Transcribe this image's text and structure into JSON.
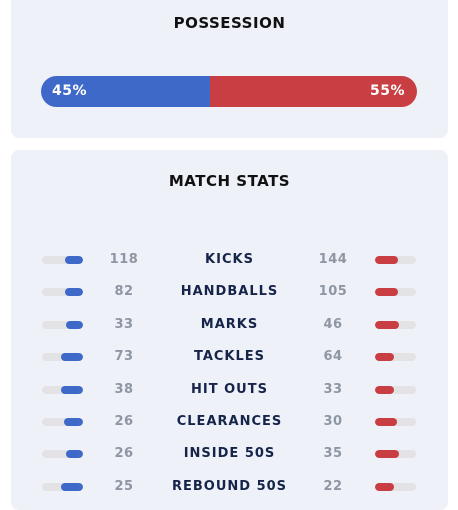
{
  "possession": {
    "title": "POSSESSION",
    "home": {
      "value": 45,
      "label": "45%",
      "color": "#3f69c9"
    },
    "away": {
      "value": 55,
      "label": "55%",
      "color": "#c93e42"
    }
  },
  "match_stats": {
    "title": "MATCH STATS",
    "rows": [
      {
        "label": "KICKS",
        "home": "118",
        "away": "144"
      },
      {
        "label": "HANDBALLS",
        "home": "82",
        "away": "105"
      },
      {
        "label": "MARKS",
        "home": "33",
        "away": "46"
      },
      {
        "label": "TACKLES",
        "home": "73",
        "away": "64"
      },
      {
        "label": "HIT OUTS",
        "home": "38",
        "away": "33"
      },
      {
        "label": "CLEARANCES",
        "home": "26",
        "away": "30"
      },
      {
        "label": "INSIDE 50S",
        "home": "26",
        "away": "35"
      },
      {
        "label": "REBOUND 50S",
        "home": "25",
        "away": "22"
      }
    ]
  }
}
